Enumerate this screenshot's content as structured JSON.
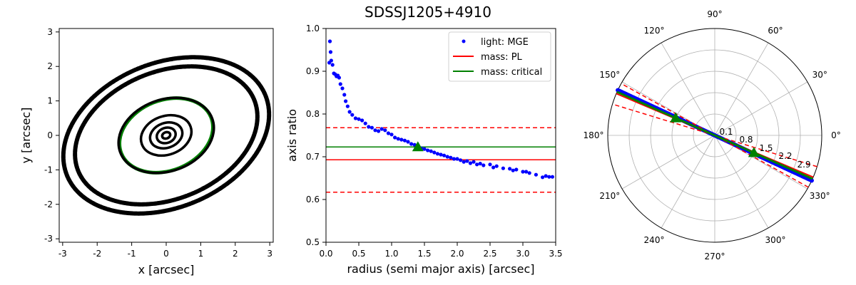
{
  "figure": {
    "title": "SDSSJ1205+4910"
  },
  "colors": {
    "light": "#0000ff",
    "mass_pl": "#ff0000",
    "mass_critical": "#008000",
    "points": "#000000",
    "grid": "#b0b0b0"
  },
  "chart_data": [
    {
      "type": "scatter",
      "panel": "contour image",
      "xlabel": "x [arcsec]",
      "ylabel": "y [arcsec]",
      "xlim": [
        -3.1,
        3.1
      ],
      "ylim": [
        -3.1,
        3.1
      ],
      "xticks": [
        -3,
        -2,
        -1,
        0,
        1,
        2,
        3
      ],
      "yticks": [
        -3,
        -2,
        -1,
        0,
        1,
        2,
        3
      ],
      "contours": [
        {
          "a": 0.12,
          "b": 0.09,
          "angle_deg": -20,
          "color": "black"
        },
        {
          "a": 0.28,
          "b": 0.22,
          "angle_deg": -20,
          "color": "black"
        },
        {
          "a": 0.48,
          "b": 0.36,
          "angle_deg": -20,
          "color": "black"
        },
        {
          "a": 0.75,
          "b": 0.56,
          "angle_deg": -20,
          "color": "black"
        },
        {
          "a": 1.4,
          "b": 1.02,
          "angle_deg": -22,
          "color": "green"
        },
        {
          "a": 1.42,
          "b": 1.04,
          "angle_deg": -20,
          "color": "black"
        },
        {
          "a": 2.75,
          "b": 1.85,
          "angle_deg": -22,
          "color": "black"
        },
        {
          "a": 3.1,
          "b": 2.1,
          "angle_deg": -22,
          "color": "black"
        }
      ]
    },
    {
      "type": "scatter",
      "panel": "axis ratio profile",
      "xlabel": "radius (semi major axis) [arcsec]",
      "ylabel": "axis ratio",
      "xlim": [
        0,
        3.5
      ],
      "ylim": [
        0.5,
        1.0
      ],
      "xticks": [
        0.0,
        0.5,
        1.0,
        1.5,
        2.0,
        2.5,
        3.0,
        3.5
      ],
      "yticks": [
        0.5,
        0.6,
        0.7,
        0.8,
        0.9,
        1.0
      ],
      "legend_position": "top-right",
      "series": [
        {
          "name": "light: MGE",
          "style": "points",
          "x": [
            0.05,
            0.06,
            0.07,
            0.08,
            0.1,
            0.12,
            0.14,
            0.16,
            0.18,
            0.2,
            0.22,
            0.25,
            0.28,
            0.3,
            0.33,
            0.36,
            0.4,
            0.45,
            0.5,
            0.55,
            0.6,
            0.65,
            0.7,
            0.75,
            0.8,
            0.85,
            0.9,
            0.95,
            1.0,
            1.05,
            1.1,
            1.15,
            1.2,
            1.25,
            1.3,
            1.35,
            1.4,
            1.45,
            1.5,
            1.55,
            1.6,
            1.65,
            1.7,
            1.75,
            1.8,
            1.85,
            1.9,
            1.95,
            2.0,
            2.05,
            2.1,
            2.15,
            2.2,
            2.25,
            2.3,
            2.35,
            2.4,
            2.5,
            2.55,
            2.6,
            2.7,
            2.8,
            2.85,
            2.9,
            3.0,
            3.05,
            3.1,
            3.2,
            3.3,
            3.35,
            3.4,
            3.45
          ],
          "y": [
            0.92,
            0.97,
            0.945,
            0.925,
            0.915,
            0.895,
            0.893,
            0.888,
            0.89,
            0.885,
            0.87,
            0.86,
            0.845,
            0.83,
            0.818,
            0.805,
            0.798,
            0.79,
            0.788,
            0.785,
            0.778,
            0.77,
            0.768,
            0.762,
            0.76,
            0.765,
            0.762,
            0.755,
            0.752,
            0.745,
            0.742,
            0.74,
            0.738,
            0.735,
            0.73,
            0.728,
            0.725,
            0.72,
            0.718,
            0.715,
            0.713,
            0.71,
            0.707,
            0.705,
            0.703,
            0.7,
            0.698,
            0.695,
            0.695,
            0.692,
            0.688,
            0.69,
            0.685,
            0.688,
            0.682,
            0.684,
            0.68,
            0.682,
            0.675,
            0.678,
            0.673,
            0.672,
            0.668,
            0.67,
            0.665,
            0.665,
            0.662,
            0.658,
            0.652,
            0.655,
            0.653,
            0.653
          ]
        },
        {
          "name": "mass: PL",
          "style": "hline",
          "y": 0.693
        },
        {
          "name": "",
          "style": "dashed-hline",
          "values": [
            0.768,
            0.617
          ]
        },
        {
          "name": "mass: critical",
          "style": "hline",
          "y": 0.723
        },
        {
          "name": "",
          "style": "marker",
          "x": 1.4,
          "y": 0.723
        }
      ]
    },
    {
      "type": "polar",
      "panel": "position angle",
      "angle_labels": [
        "0°",
        "30°",
        "60°",
        "90°",
        "120°",
        "150°",
        "180°",
        "210°",
        "240°",
        "270°",
        "300°",
        "330°"
      ],
      "radial_labels": [
        "0.1",
        "0.8",
        "1.5",
        "2.2",
        "2.9"
      ],
      "lines": [
        {
          "series": "light: MGE",
          "angle_deg": 335,
          "style": "points"
        },
        {
          "series": "mass: PL",
          "angle_deg": 337,
          "style": "solid"
        },
        {
          "series": "mass: PL",
          "angle_deg": 343,
          "style": "dashed"
        },
        {
          "series": "mass: PL",
          "angle_deg": 331,
          "style": "dashed"
        },
        {
          "series": "mass: critical",
          "angle_deg": 336,
          "style": "solid"
        }
      ],
      "markers": [
        {
          "series": "mass: critical",
          "angle_deg": 336
        }
      ]
    }
  ]
}
